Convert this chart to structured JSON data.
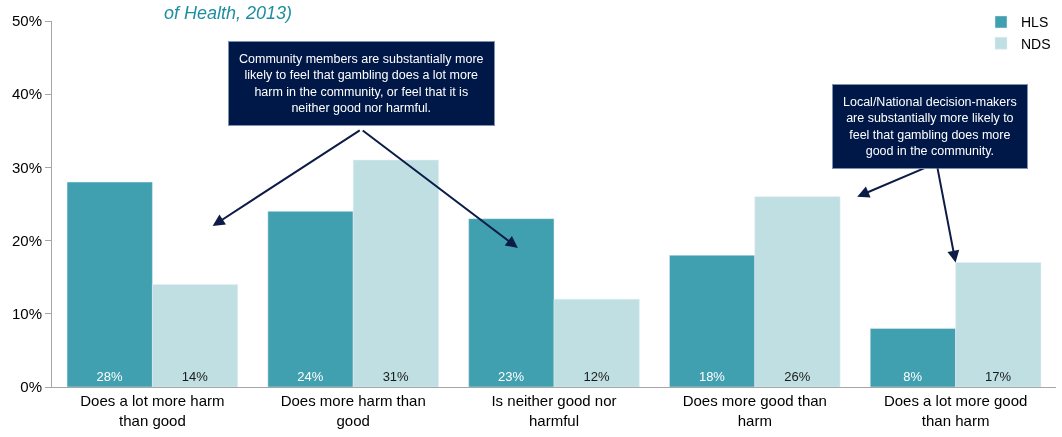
{
  "chart_data": {
    "type": "bar",
    "title": "of Health, 2013)",
    "categories": [
      "Does a lot more harm than good",
      "Does more harm than good",
      "Is neither good nor harmful",
      "Does more good than harm",
      "Does a lot more good than harm"
    ],
    "series": [
      {
        "name": "HLS",
        "color": "#40a0b0",
        "values": [
          28,
          24,
          23,
          18,
          8
        ],
        "value_labels": [
          "28%",
          "24%",
          "23%",
          "18%",
          "8%"
        ]
      },
      {
        "name": "NDS",
        "color": "#bfdfe3",
        "values": [
          14,
          31,
          12,
          26,
          17
        ],
        "value_labels": [
          "14%",
          "31%",
          "12%",
          "26%",
          "17%"
        ]
      }
    ],
    "ylim": [
      0,
      50
    ],
    "yticks": [
      {
        "value": 0,
        "label": "0%"
      },
      {
        "value": 10,
        "label": "10%"
      },
      {
        "value": 20,
        "label": "20%"
      },
      {
        "value": 30,
        "label": "30%"
      },
      {
        "value": 40,
        "label": "40%"
      },
      {
        "value": 50,
        "label": "50%"
      }
    ],
    "legend": "top right",
    "annotations": [
      "Community members are substantially more likely to feel that gambling does a lot more harm in the community, or feel that it is neither good nor harmful.",
      {
        "text": "Local/National decision-makers are substantially more likely to feel that gambling does more good in the community.",
        "x": "Does a lot more good than harm",
        "y": 17
      }
    ]
  }
}
